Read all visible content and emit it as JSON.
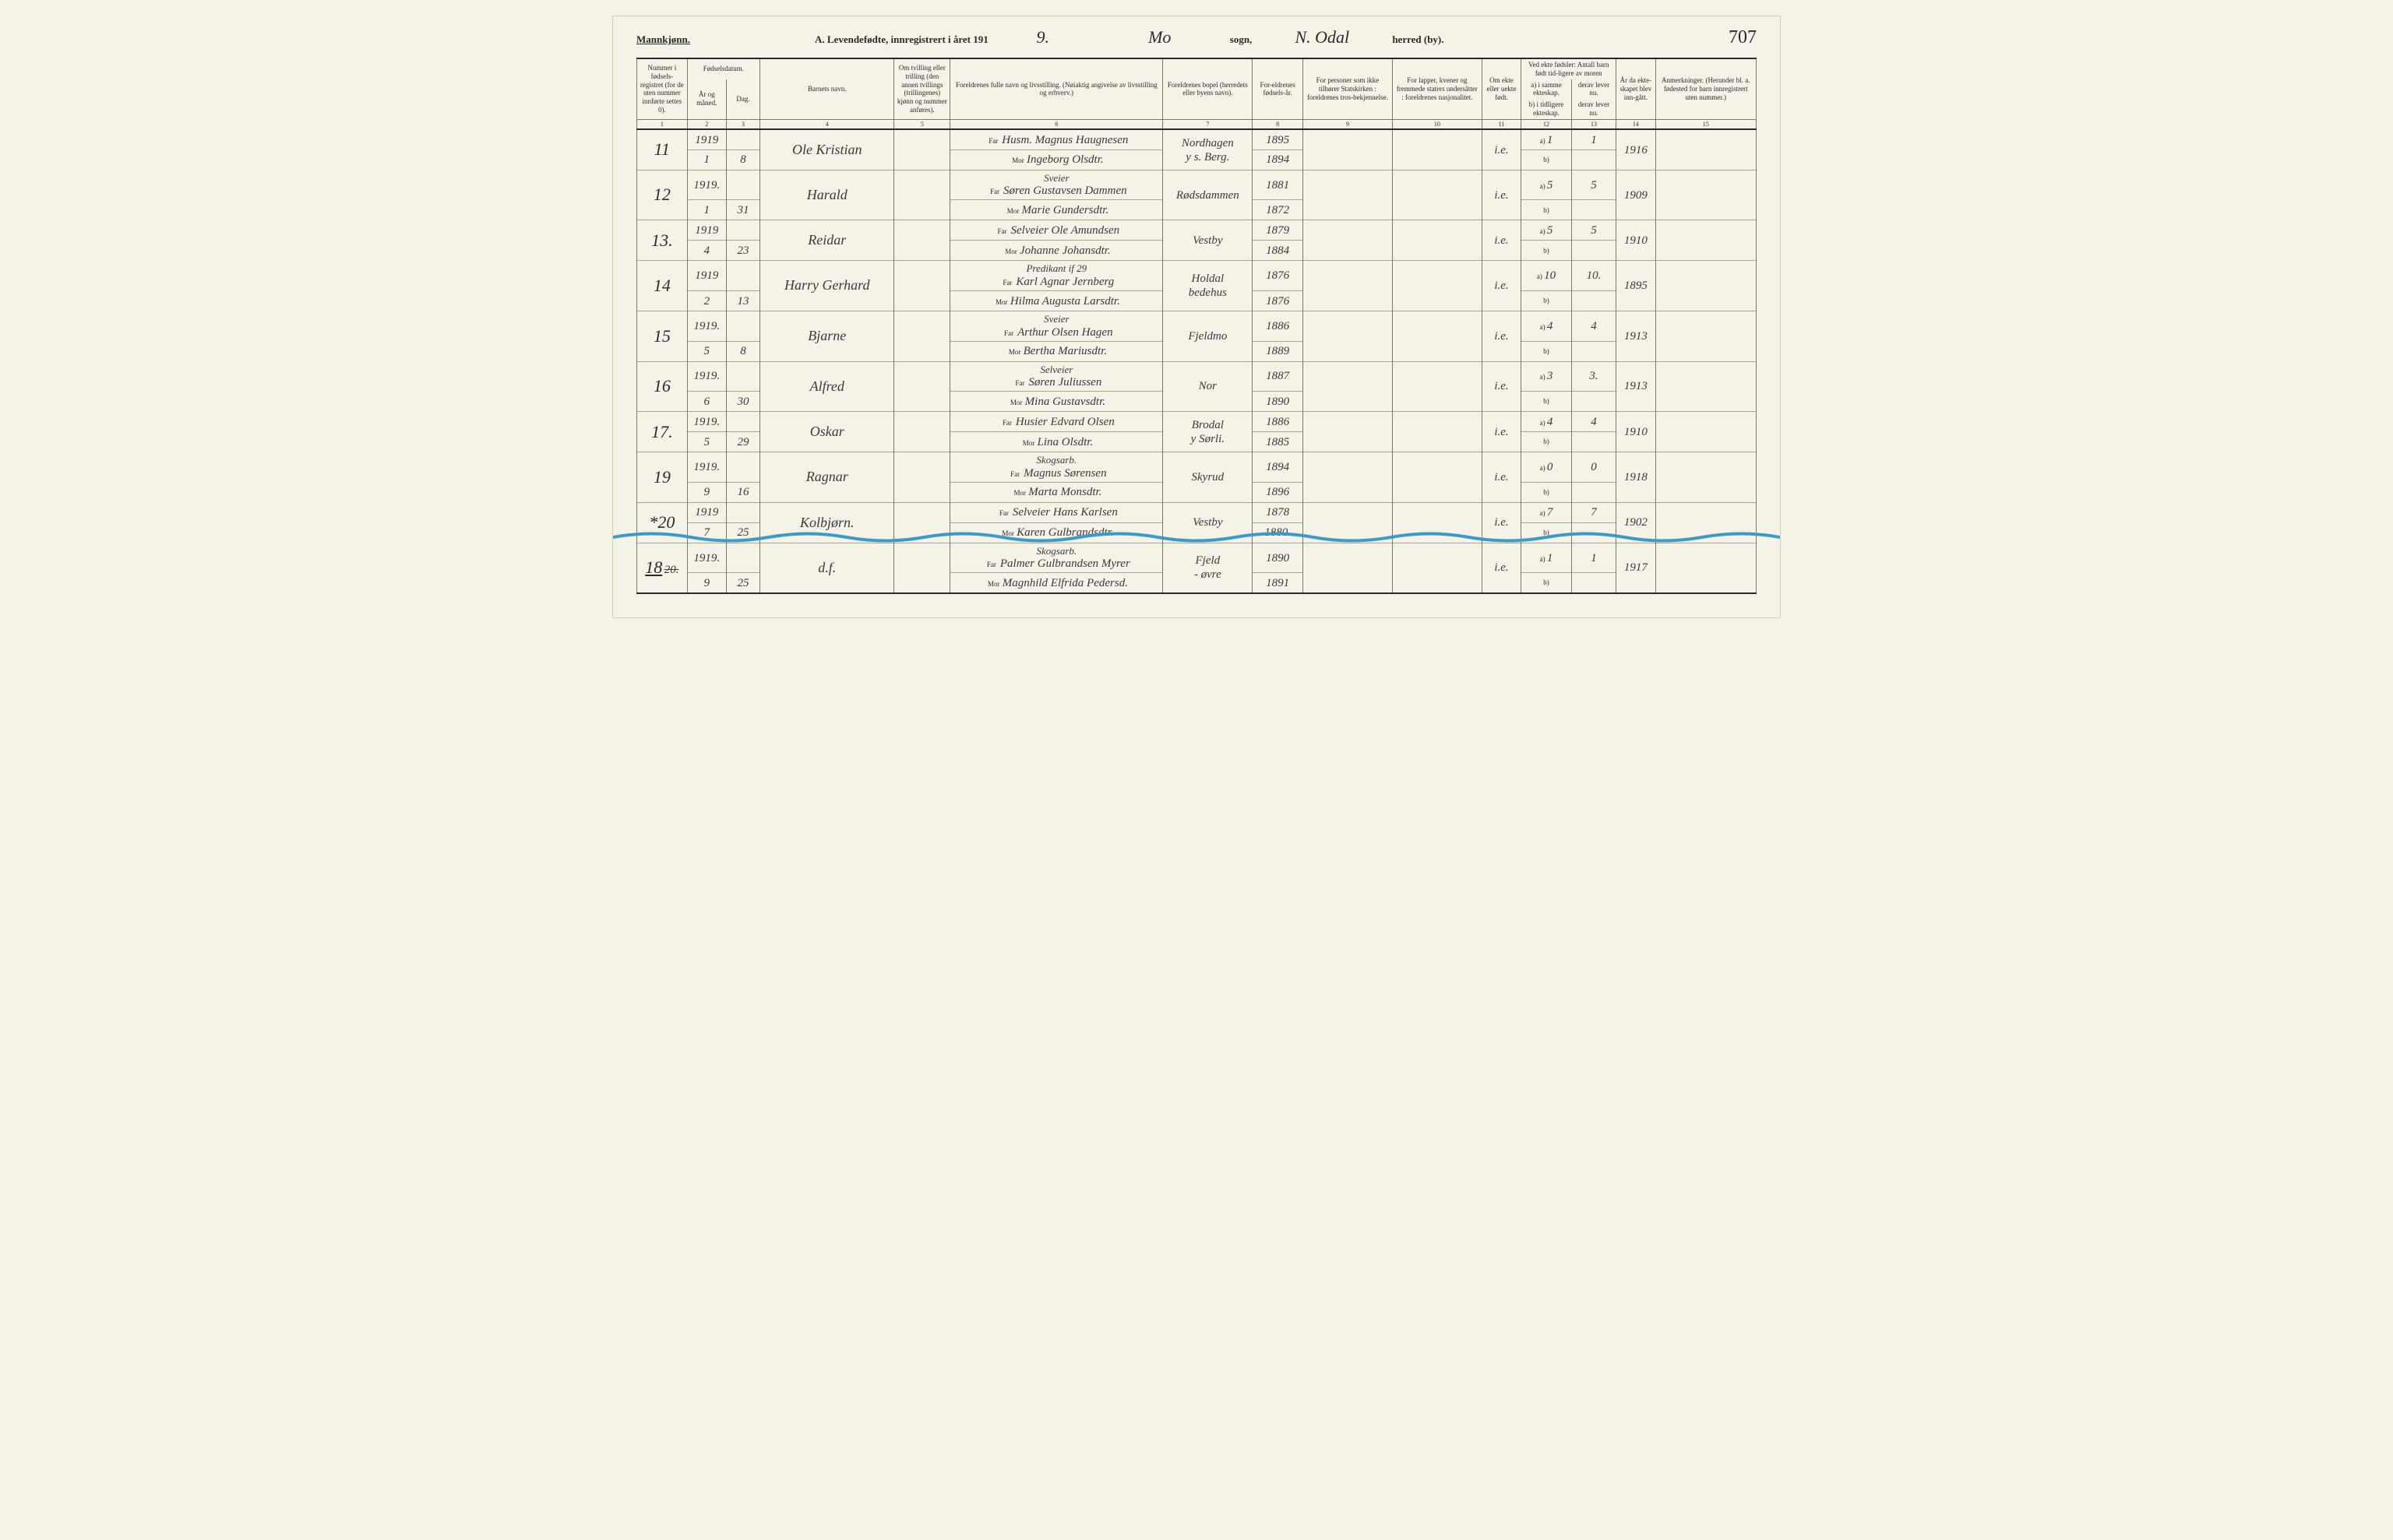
{
  "colors": {
    "paper": "#f5f2e8",
    "ink": "#2a2a2a",
    "rule": "#7a7868",
    "hand": "#3a3a3a",
    "wave": "#3b9bc7"
  },
  "header": {
    "mannkjonn": "Mannkjønn.",
    "title_prefix": "A. Levendefødte, innregistrert i året 191",
    "year_suffix": "9.",
    "sogn_label_before": "sogn,",
    "sogn_value": "Mo",
    "herred_label": "herred (by).",
    "herred_value": "N. Odal",
    "page_number": "707"
  },
  "column_labels": {
    "c1": "Nummer i fødsels-registret (for de uten nummer innførte settes 0).",
    "c2_top": "Fødselsdatum.",
    "c2a": "År og måned.",
    "c2b": "Dag.",
    "c4": "Barnets navn.",
    "c5": "Om tvilling eller trilling (den annen tvillings (trillingenes) kjønn og nummer anføres).",
    "c6": "Foreldrenes fulle navn og livsstilling. (Nøiaktig angivelse av livsstilling og erhverv.)",
    "c7": "Foreldrenes bopel (herredets eller byens navn).",
    "c8": "For-eldrenes fødsels-år.",
    "c9": "For personer som ikke tilhører Statskirken : foreldrenes tros-bekjennelse.",
    "c10": "For lapper, kvener og fremmede staters undersåtter : foreldrenes nasjonalitet.",
    "c11": "Om ekte eller uekte født.",
    "c12_top": "Ved ekte fødsler: Antall barn født tid-ligere av moren",
    "c12a": "a) i samme ekteskap.",
    "c12b": "b) i tidligere ekteskap.",
    "c13a": "derav lever nu.",
    "c13b": "derav lever nu.",
    "c14": "År da ekte-skapet blev inn-gått.",
    "c15": "Anmerkninger. (Herunder bl. a. fødested for barn innregistrert uten nummer.)",
    "far": "Far",
    "mor": "Mor",
    "a": "a)",
    "b": "b)"
  },
  "col_numbers": [
    "1",
    "2",
    "3",
    "4",
    "5",
    "6",
    "7",
    "8",
    "9",
    "10",
    "11",
    "12",
    "13",
    "14",
    "15"
  ],
  "rows": [
    {
      "num": "11",
      "year": "1919",
      "month": "1",
      "day": "8",
      "child": "Ole Kristian",
      "far": "Husm. Magnus Haugnesen",
      "mor": "Ingeborg Olsdtr.",
      "bopel": "Nordhagen",
      "bopel2": "y s. Berg.",
      "far_year": "1895",
      "mor_year": "1894",
      "ekte": "i.e.",
      "a": "1",
      "derav": "1",
      "marriage": "1916"
    },
    {
      "num": "12",
      "year": "1919.",
      "month": "1",
      "day": "31",
      "child": "Harald",
      "far_pre": "Sveier",
      "far": "Søren Gustavsen Dammen",
      "mor": "Marie Gundersdtr.",
      "bopel": "Rødsdammen",
      "far_year": "1881",
      "mor_year": "1872",
      "ekte": "i.e.",
      "a": "5",
      "derav": "5",
      "marriage": "1909"
    },
    {
      "num": "13.",
      "year": "1919",
      "month": "4",
      "day": "23",
      "child": "Reidar",
      "far": "Selveier Ole Amundsen",
      "mor": "Johanne Johansdtr.",
      "bopel": "Vestby",
      "far_year": "1879",
      "mor_year": "1884",
      "ekte": "i.e.",
      "a": "5",
      "derav": "5",
      "marriage": "1910"
    },
    {
      "num": "14",
      "year": "1919",
      "month": "2",
      "day": "13",
      "child": "Harry Gerhard",
      "far_pre": "Predikant if 29",
      "far": "Karl Agnar Jernberg",
      "mor": "Hilma Augusta Larsdtr.",
      "bopel": "Holdal",
      "bopel2": "bedehus",
      "far_year": "1876",
      "mor_year": "1876",
      "ekte": "i.e.",
      "a": "10",
      "derav": "10.",
      "marriage": "1895"
    },
    {
      "num": "15",
      "year": "1919.",
      "month": "5",
      "day": "8",
      "child": "Bjarne",
      "far_pre": "Sveier",
      "far": "Arthur Olsen Hagen",
      "mor": "Bertha Mariusdtr.",
      "bopel": "Fjeldmo",
      "far_year": "1886",
      "mor_year": "1889",
      "ekte": "i.e.",
      "a": "4",
      "derav": "4",
      "marriage": "1913"
    },
    {
      "num": "16",
      "year": "1919.",
      "month": "6",
      "day": "30",
      "child": "Alfred",
      "far_pre": "Selveier",
      "far": "Søren Juliussen",
      "mor": "Mina Gustavsdtr.",
      "bopel": "Nor",
      "far_year": "1887",
      "mor_year": "1890",
      "ekte": "i.e.",
      "a": "3",
      "derav": "3.",
      "marriage": "1913"
    },
    {
      "num": "17.",
      "year": "1919.",
      "month": "5",
      "day": "29",
      "child": "Oskar",
      "far": "Husier Edvard Olsen",
      "mor": "Lina Olsdtr.",
      "bopel": "Brodal",
      "bopel2": "y Sørli.",
      "far_year": "1886",
      "mor_year": "1885",
      "ekte": "i.e.",
      "a": "4",
      "derav": "4",
      "marriage": "1910"
    },
    {
      "num": "19",
      "year": "1919.",
      "month": "9",
      "day": "16",
      "child": "Ragnar",
      "far_pre": "Skogsarb.",
      "far": "Magnus Sørensen",
      "mor": "Marta Monsdtr.",
      "bopel": "Skyrud",
      "far_year": "1894",
      "mor_year": "1896",
      "ekte": "i.e.",
      "a": "0",
      "derav": "0",
      "marriage": "1918"
    },
    {
      "num": "*20",
      "year": "1919",
      "month": "7",
      "day": "25",
      "child": "Kolbjørn.",
      "far": "Selveier Hans Karlsen",
      "mor": "Karen Gulbrandsdtr.",
      "bopel": "Vestby",
      "far_year": "1878",
      "mor_year": "1880.",
      "ekte": "i.e.",
      "a": "7",
      "derav": "7",
      "marriage": "1902"
    },
    {
      "num": "18",
      "num_struck": "20.",
      "year": "1919.",
      "month": "9",
      "day": "25",
      "child": "d.f.",
      "far_pre": "Skogsarb.",
      "far": "Palmer Gulbrandsen Myrer",
      "mor": "Magnhild Elfrida Pedersd.",
      "bopel": "Fjeld",
      "bopel2": "- øvre",
      "far_year": "1890",
      "mor_year": "1891",
      "ekte": "i.e.",
      "a": "1",
      "derav": "1",
      "marriage": "1917"
    }
  ]
}
